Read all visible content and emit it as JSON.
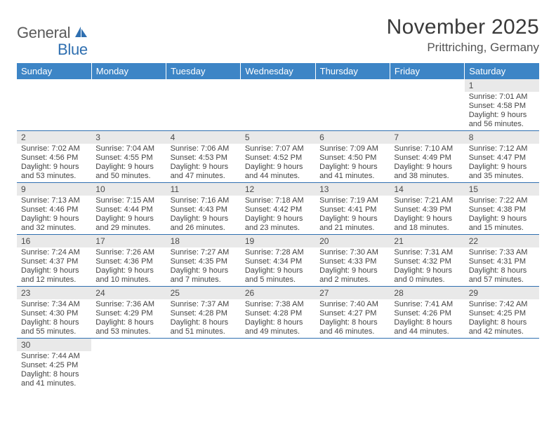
{
  "brand": {
    "name_part1": "General",
    "name_part2": "Blue"
  },
  "title": "November 2025",
  "location": "Prittriching, Germany",
  "colors": {
    "header_bg": "#3d85c6",
    "header_fg": "#ffffff",
    "daynum_bg": "#e9e9e9",
    "row_border": "#2f6fb0",
    "text": "#444444",
    "brand_gray": "#5a5a5a",
    "brand_blue": "#2f6fb0"
  },
  "weekdays": [
    "Sunday",
    "Monday",
    "Tuesday",
    "Wednesday",
    "Thursday",
    "Friday",
    "Saturday"
  ],
  "weeks": [
    [
      null,
      null,
      null,
      null,
      null,
      null,
      {
        "n": "1",
        "sunrise": "Sunrise: 7:01 AM",
        "sunset": "Sunset: 4:58 PM",
        "daylight": "Daylight: 9 hours and 56 minutes."
      }
    ],
    [
      {
        "n": "2",
        "sunrise": "Sunrise: 7:02 AM",
        "sunset": "Sunset: 4:56 PM",
        "daylight": "Daylight: 9 hours and 53 minutes."
      },
      {
        "n": "3",
        "sunrise": "Sunrise: 7:04 AM",
        "sunset": "Sunset: 4:55 PM",
        "daylight": "Daylight: 9 hours and 50 minutes."
      },
      {
        "n": "4",
        "sunrise": "Sunrise: 7:06 AM",
        "sunset": "Sunset: 4:53 PM",
        "daylight": "Daylight: 9 hours and 47 minutes."
      },
      {
        "n": "5",
        "sunrise": "Sunrise: 7:07 AM",
        "sunset": "Sunset: 4:52 PM",
        "daylight": "Daylight: 9 hours and 44 minutes."
      },
      {
        "n": "6",
        "sunrise": "Sunrise: 7:09 AM",
        "sunset": "Sunset: 4:50 PM",
        "daylight": "Daylight: 9 hours and 41 minutes."
      },
      {
        "n": "7",
        "sunrise": "Sunrise: 7:10 AM",
        "sunset": "Sunset: 4:49 PM",
        "daylight": "Daylight: 9 hours and 38 minutes."
      },
      {
        "n": "8",
        "sunrise": "Sunrise: 7:12 AM",
        "sunset": "Sunset: 4:47 PM",
        "daylight": "Daylight: 9 hours and 35 minutes."
      }
    ],
    [
      {
        "n": "9",
        "sunrise": "Sunrise: 7:13 AM",
        "sunset": "Sunset: 4:46 PM",
        "daylight": "Daylight: 9 hours and 32 minutes."
      },
      {
        "n": "10",
        "sunrise": "Sunrise: 7:15 AM",
        "sunset": "Sunset: 4:44 PM",
        "daylight": "Daylight: 9 hours and 29 minutes."
      },
      {
        "n": "11",
        "sunrise": "Sunrise: 7:16 AM",
        "sunset": "Sunset: 4:43 PM",
        "daylight": "Daylight: 9 hours and 26 minutes."
      },
      {
        "n": "12",
        "sunrise": "Sunrise: 7:18 AM",
        "sunset": "Sunset: 4:42 PM",
        "daylight": "Daylight: 9 hours and 23 minutes."
      },
      {
        "n": "13",
        "sunrise": "Sunrise: 7:19 AM",
        "sunset": "Sunset: 4:41 PM",
        "daylight": "Daylight: 9 hours and 21 minutes."
      },
      {
        "n": "14",
        "sunrise": "Sunrise: 7:21 AM",
        "sunset": "Sunset: 4:39 PM",
        "daylight": "Daylight: 9 hours and 18 minutes."
      },
      {
        "n": "15",
        "sunrise": "Sunrise: 7:22 AM",
        "sunset": "Sunset: 4:38 PM",
        "daylight": "Daylight: 9 hours and 15 minutes."
      }
    ],
    [
      {
        "n": "16",
        "sunrise": "Sunrise: 7:24 AM",
        "sunset": "Sunset: 4:37 PM",
        "daylight": "Daylight: 9 hours and 12 minutes."
      },
      {
        "n": "17",
        "sunrise": "Sunrise: 7:26 AM",
        "sunset": "Sunset: 4:36 PM",
        "daylight": "Daylight: 9 hours and 10 minutes."
      },
      {
        "n": "18",
        "sunrise": "Sunrise: 7:27 AM",
        "sunset": "Sunset: 4:35 PM",
        "daylight": "Daylight: 9 hours and 7 minutes."
      },
      {
        "n": "19",
        "sunrise": "Sunrise: 7:28 AM",
        "sunset": "Sunset: 4:34 PM",
        "daylight": "Daylight: 9 hours and 5 minutes."
      },
      {
        "n": "20",
        "sunrise": "Sunrise: 7:30 AM",
        "sunset": "Sunset: 4:33 PM",
        "daylight": "Daylight: 9 hours and 2 minutes."
      },
      {
        "n": "21",
        "sunrise": "Sunrise: 7:31 AM",
        "sunset": "Sunset: 4:32 PM",
        "daylight": "Daylight: 9 hours and 0 minutes."
      },
      {
        "n": "22",
        "sunrise": "Sunrise: 7:33 AM",
        "sunset": "Sunset: 4:31 PM",
        "daylight": "Daylight: 8 hours and 57 minutes."
      }
    ],
    [
      {
        "n": "23",
        "sunrise": "Sunrise: 7:34 AM",
        "sunset": "Sunset: 4:30 PM",
        "daylight": "Daylight: 8 hours and 55 minutes."
      },
      {
        "n": "24",
        "sunrise": "Sunrise: 7:36 AM",
        "sunset": "Sunset: 4:29 PM",
        "daylight": "Daylight: 8 hours and 53 minutes."
      },
      {
        "n": "25",
        "sunrise": "Sunrise: 7:37 AM",
        "sunset": "Sunset: 4:28 PM",
        "daylight": "Daylight: 8 hours and 51 minutes."
      },
      {
        "n": "26",
        "sunrise": "Sunrise: 7:38 AM",
        "sunset": "Sunset: 4:28 PM",
        "daylight": "Daylight: 8 hours and 49 minutes."
      },
      {
        "n": "27",
        "sunrise": "Sunrise: 7:40 AM",
        "sunset": "Sunset: 4:27 PM",
        "daylight": "Daylight: 8 hours and 46 minutes."
      },
      {
        "n": "28",
        "sunrise": "Sunrise: 7:41 AM",
        "sunset": "Sunset: 4:26 PM",
        "daylight": "Daylight: 8 hours and 44 minutes."
      },
      {
        "n": "29",
        "sunrise": "Sunrise: 7:42 AM",
        "sunset": "Sunset: 4:25 PM",
        "daylight": "Daylight: 8 hours and 42 minutes."
      }
    ],
    [
      {
        "n": "30",
        "sunrise": "Sunrise: 7:44 AM",
        "sunset": "Sunset: 4:25 PM",
        "daylight": "Daylight: 8 hours and 41 minutes."
      },
      null,
      null,
      null,
      null,
      null,
      null
    ]
  ]
}
